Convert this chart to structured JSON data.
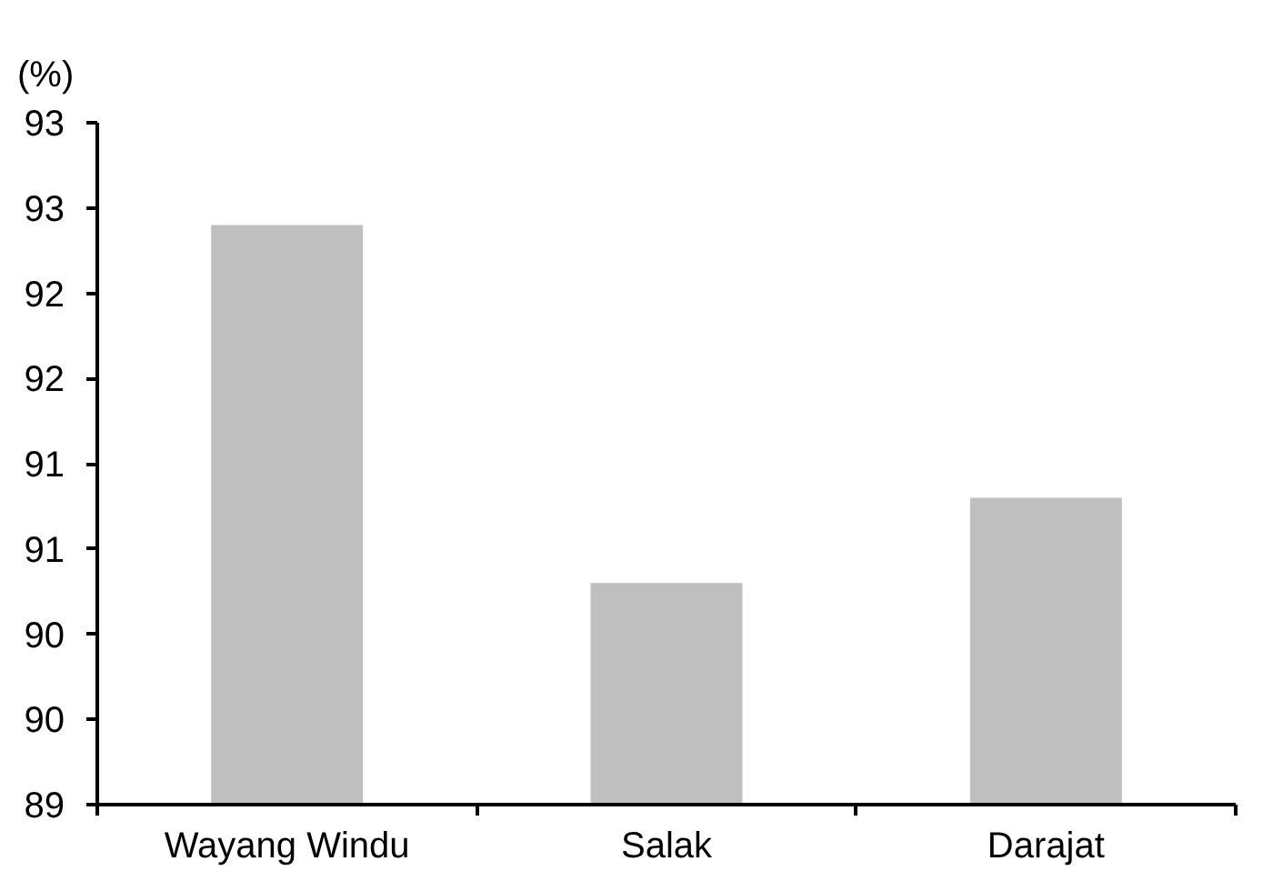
{
  "chart_data": {
    "type": "bar",
    "ylabel": "(%)",
    "categories": [
      "Wayang Windu",
      "Salak",
      "Darajat"
    ],
    "values": [
      92.4,
      90.3,
      90.8
    ],
    "color": "#bfbfbf",
    "ylim": [
      89,
      93
    ],
    "yticks": [
      89,
      {
        "value": 89.5,
        "label": "90"
      },
      90,
      {
        "value": 90.5,
        "label": "91"
      },
      91,
      {
        "value": 91.5,
        "label": "92"
      },
      92,
      {
        "value": 92.5,
        "label": "93"
      },
      93
    ],
    "grid": false
  }
}
